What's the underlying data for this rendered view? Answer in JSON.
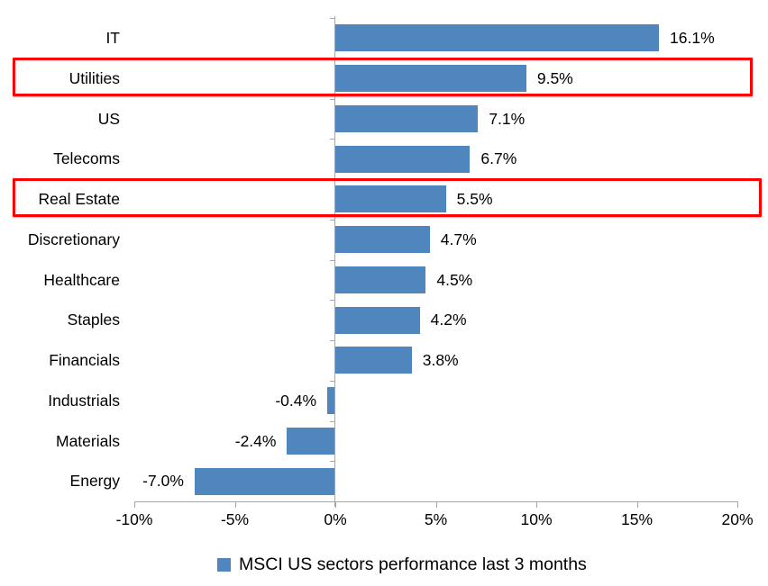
{
  "chart_data": {
    "type": "bar",
    "orientation": "horizontal",
    "title": "",
    "categories": [
      "IT",
      "Utilities",
      "US",
      "Telecoms",
      "Real Estate",
      "Discretionary",
      "Healthcare",
      "Staples",
      "Financials",
      "Industrials",
      "Materials",
      "Energy"
    ],
    "values": [
      16.1,
      9.5,
      7.1,
      6.7,
      5.5,
      4.7,
      4.5,
      4.2,
      3.8,
      -0.4,
      -2.4,
      -7.0
    ],
    "value_labels": [
      "16.1%",
      "9.5%",
      "7.1%",
      "6.7%",
      "5.5%",
      "4.7%",
      "4.5%",
      "4.2%",
      "3.8%",
      "-0.4%",
      "-2.4%",
      "-7.0%"
    ],
    "highlighted_categories": [
      "Utilities",
      "Real Estate"
    ],
    "x_axis": {
      "min": -10,
      "max": 20,
      "tick_values": [
        -10,
        -5,
        0,
        5,
        10,
        15,
        20
      ],
      "tick_labels": [
        "-10%",
        "-5%",
        "0%",
        "5%",
        "10%",
        "15%",
        "20%"
      ]
    },
    "legend": {
      "label": "MSCI US sectors performance last 3 months",
      "marker": "square"
    },
    "colors": {
      "bar": "#4e86bd",
      "highlight_box": "#ff0000",
      "axis": "#a6a6a6",
      "text": "#000000",
      "background": "#ffffff"
    },
    "grid": false,
    "legend_position": "bottom-center"
  }
}
